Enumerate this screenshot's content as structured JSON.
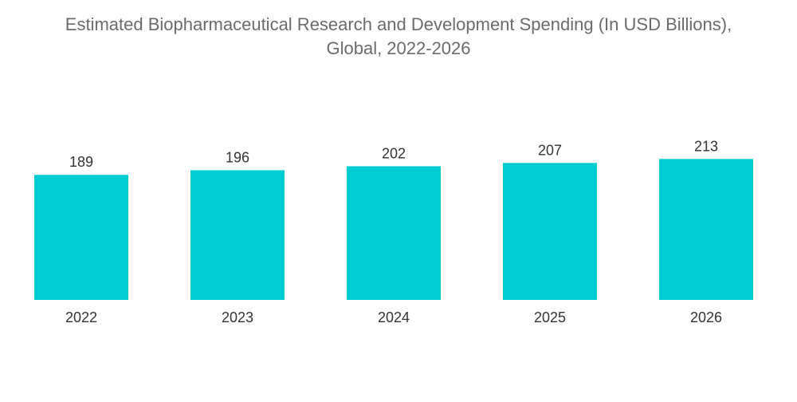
{
  "chart_data": {
    "type": "bar",
    "title": "Estimated Biopharmaceutical Research and Development Spending (In USD Billions),",
    "subtitle": "Global, 2022-2026",
    "categories": [
      "2022",
      "2023",
      "2024",
      "2025",
      "2026"
    ],
    "values": [
      189,
      196,
      202,
      207,
      213
    ],
    "xlabel": "",
    "ylabel": "",
    "grid": false,
    "legend": "none",
    "bar_color": "#00cdd1"
  }
}
